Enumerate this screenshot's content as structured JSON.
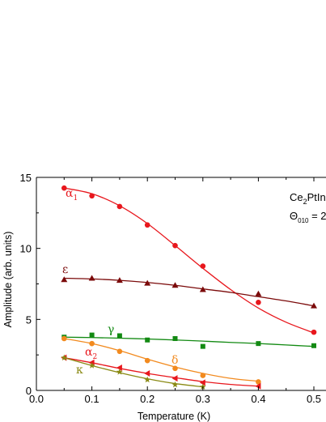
{
  "chart_data": {
    "type": "scatter",
    "title": "",
    "xlabel": "Temperature (K)",
    "ylabel": "Amplitude (arb. units)",
    "xlim": [
      0.0,
      0.53
    ],
    "ylim": [
      0,
      15
    ],
    "xticks": [
      "0.0",
      "0.1",
      "0.2",
      "0.3",
      "0.4",
      "0.5"
    ],
    "yticks": [
      "0",
      "5",
      "10",
      "15"
    ],
    "grid": false,
    "annotation": {
      "compound_main": "Ce",
      "compound_sub": "2",
      "compound_rest": "PtIn",
      "theta_symbol": "Θ",
      "theta_sub": "010",
      "theta_rest": " = 2"
    },
    "series": [
      {
        "name": "α",
        "name_sub": "1",
        "color": "#e8171d",
        "marker": "circle",
        "x": [
          0.05,
          0.1,
          0.15,
          0.2,
          0.25,
          0.3,
          0.4,
          0.5
        ],
        "y": [
          14.25,
          13.7,
          12.95,
          11.65,
          10.2,
          8.75,
          6.2,
          4.1
        ],
        "fit": [
          [
            0.05,
            14.25
          ],
          [
            0.1,
            13.85
          ],
          [
            0.15,
            13.0
          ],
          [
            0.2,
            11.75
          ],
          [
            0.25,
            10.2
          ],
          [
            0.3,
            8.6
          ],
          [
            0.35,
            7.1
          ],
          [
            0.4,
            5.8
          ],
          [
            0.45,
            4.8
          ],
          [
            0.5,
            4.05
          ]
        ]
      },
      {
        "name": "ε",
        "name_sub": "",
        "color": "#7b0a0a",
        "marker": "triangle-up",
        "x": [
          0.05,
          0.1,
          0.15,
          0.2,
          0.25,
          0.3,
          0.4,
          0.5
        ],
        "y": [
          7.8,
          7.9,
          7.75,
          7.55,
          7.4,
          7.1,
          6.8,
          5.95
        ],
        "fit": [
          [
            0.05,
            7.9
          ],
          [
            0.1,
            7.85
          ],
          [
            0.15,
            7.75
          ],
          [
            0.2,
            7.6
          ],
          [
            0.25,
            7.4
          ],
          [
            0.3,
            7.15
          ],
          [
            0.35,
            6.9
          ],
          [
            0.4,
            6.6
          ],
          [
            0.45,
            6.3
          ],
          [
            0.5,
            5.95
          ]
        ]
      },
      {
        "name": "γ",
        "name_sub": "",
        "color": "#138a13",
        "marker": "square",
        "x": [
          0.05,
          0.1,
          0.15,
          0.2,
          0.25,
          0.3,
          0.4,
          0.5
        ],
        "y": [
          3.75,
          3.9,
          3.85,
          3.55,
          3.65,
          3.1,
          3.3,
          3.15
        ],
        "fit": [
          [
            0.05,
            3.75
          ],
          [
            0.1,
            3.72
          ],
          [
            0.15,
            3.68
          ],
          [
            0.2,
            3.62
          ],
          [
            0.25,
            3.55
          ],
          [
            0.3,
            3.47
          ],
          [
            0.35,
            3.38
          ],
          [
            0.4,
            3.3
          ],
          [
            0.45,
            3.2
          ],
          [
            0.5,
            3.1
          ]
        ]
      },
      {
        "name": "δ",
        "name_sub": "",
        "color": "#f28a1e",
        "marker": "circle",
        "x": [
          0.05,
          0.1,
          0.15,
          0.2,
          0.25,
          0.3,
          0.4
        ],
        "y": [
          3.65,
          3.3,
          2.75,
          2.1,
          1.55,
          1.05,
          0.6
        ],
        "fit": [
          [
            0.05,
            3.65
          ],
          [
            0.1,
            3.3
          ],
          [
            0.15,
            2.8
          ],
          [
            0.2,
            2.2
          ],
          [
            0.25,
            1.65
          ],
          [
            0.3,
            1.2
          ],
          [
            0.35,
            0.85
          ],
          [
            0.4,
            0.65
          ]
        ]
      },
      {
        "name": "α",
        "name_sub": "2",
        "color": "#e8171d",
        "marker": "triangle-left",
        "x": [
          0.05,
          0.1,
          0.15,
          0.2,
          0.25,
          0.3,
          0.4
        ],
        "y": [
          2.3,
          1.95,
          1.6,
          1.2,
          0.85,
          0.55,
          0.3
        ],
        "fit": [
          [
            0.05,
            2.3
          ],
          [
            0.1,
            1.95
          ],
          [
            0.15,
            1.55
          ],
          [
            0.2,
            1.2
          ],
          [
            0.25,
            0.9
          ],
          [
            0.3,
            0.62
          ],
          [
            0.35,
            0.42
          ],
          [
            0.4,
            0.3
          ]
        ]
      },
      {
        "name": "κ",
        "name_sub": "",
        "color": "#8a8a14",
        "marker": "star",
        "x": [
          0.05,
          0.1,
          0.15,
          0.2,
          0.25,
          0.3
        ],
        "y": [
          2.3,
          1.75,
          1.3,
          0.75,
          0.4,
          0.25
        ],
        "fit": [
          [
            0.05,
            2.3
          ],
          [
            0.1,
            1.75
          ],
          [
            0.15,
            1.25
          ],
          [
            0.2,
            0.82
          ],
          [
            0.25,
            0.48
          ],
          [
            0.3,
            0.25
          ]
        ]
      }
    ]
  }
}
